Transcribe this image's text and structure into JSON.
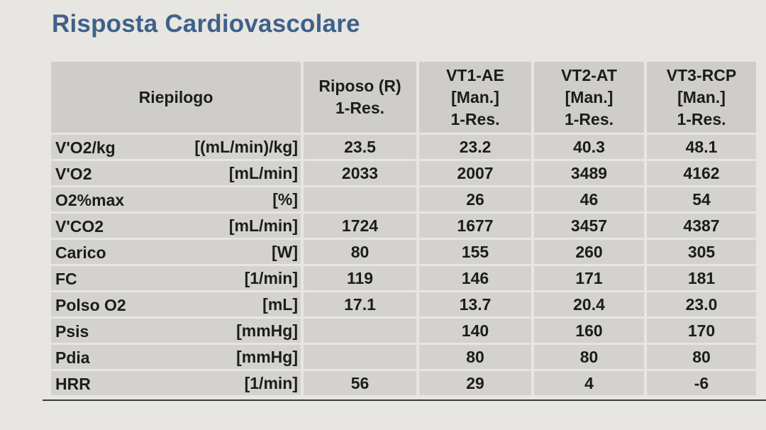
{
  "title": "Risposta Cardiovascolare",
  "table": {
    "headers": [
      "Riepilogo",
      "Riposo (R)\n1-Res.",
      "VT1-AE\n[Man.]\n1-Res.",
      "VT2-AT\n[Man.]\n1-Res.",
      "VT3-RCP\n[Man.]\n1-Res."
    ],
    "rows": [
      {
        "name": "V'O2/kg",
        "unit": "[(mL/min)/kg]",
        "values": [
          "23.5",
          "23.2",
          "40.3",
          "48.1"
        ]
      },
      {
        "name": "V'O2",
        "unit": "[mL/min]",
        "values": [
          "2033",
          "2007",
          "3489",
          "4162"
        ]
      },
      {
        "name": "O2%max",
        "unit": "[%]",
        "values": [
          "",
          "26",
          "46",
          "54"
        ]
      },
      {
        "name": "V'CO2",
        "unit": "[mL/min]",
        "values": [
          "1724",
          "1677",
          "3457",
          "4387"
        ]
      },
      {
        "name": "Carico",
        "unit": "[W]",
        "values": [
          "80",
          "155",
          "260",
          "305"
        ]
      },
      {
        "name": "FC",
        "unit": "[1/min]",
        "values": [
          "119",
          "146",
          "171",
          "181"
        ]
      },
      {
        "name": "Polso O2",
        "unit": "[mL]",
        "values": [
          "17.1",
          "13.7",
          "20.4",
          "23.0"
        ]
      },
      {
        "name": "Psis",
        "unit": "[mmHg]",
        "values": [
          "",
          "140",
          "160",
          "170"
        ]
      },
      {
        "name": "Pdia",
        "unit": "[mmHg]",
        "values": [
          "",
          "80",
          "80",
          "80"
        ]
      },
      {
        "name": "HRR",
        "unit": "[1/min]",
        "values": [
          "56",
          "29",
          "4",
          "-6"
        ]
      }
    ]
  }
}
